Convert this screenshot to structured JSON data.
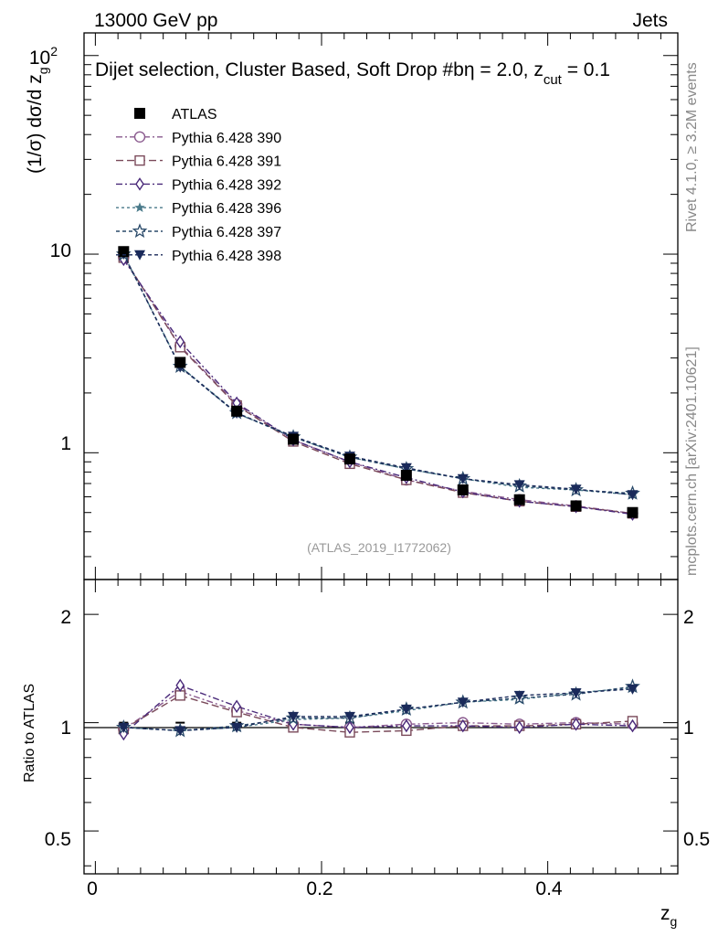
{
  "header": {
    "energy_label": "13000 GeV pp",
    "category_label": "Jets",
    "selection_title": "Dijet selection, Cluster Based, Soft Drop #bη = 2.0, z",
    "selection_sub": "cut",
    "selection_tail": " = 0.1",
    "watermark": "(ATLAS_2019_I1772062)",
    "rivet_side": "Rivet 4.1.0, ≥ 3.2M events",
    "mcplots_side": "mcplots.cern.ch [arXiv:2401.10621]"
  },
  "axes": {
    "main_ylabel_prefix": "(1/σ) dσ/d z",
    "main_ylabel_sub": "g",
    "ratio_ylabel": "Ratio to ATLAS",
    "xlabel": "z",
    "xlabel_sub": "g",
    "x_ticks": [
      "0",
      "0.2",
      "0.4"
    ],
    "main_y_ticks": [
      "1",
      "10",
      "10"
    ],
    "main_y_tick_sup": "2",
    "ratio_y_ticks": [
      "0.5",
      "1",
      "2"
    ],
    "ratio_y_ticks_right": [
      "0.5",
      "1",
      "2"
    ]
  },
  "colors": {
    "ATLAS": "#000000",
    "p390": "#8a5a8e",
    "p391": "#7a4a5a",
    "p392": "#4a2a7a",
    "p396": "#4a7a8a",
    "p397": "#2a4a6a",
    "p398": "#1a2a5a"
  },
  "chart_data": {
    "type": "scatter",
    "title": "Dijet selection, Cluster Based, Soft Drop #bη = 2.0, z_cut = 0.1",
    "xlabel": "z_g",
    "ylabel": "(1/σ) dσ/d z_g",
    "ratio_ylabel": "Ratio to ATLAS",
    "xlim": [
      -0.01,
      0.515
    ],
    "ylim": [
      0.23,
      130
    ],
    "ratio_ylim": [
      0.38,
      2.5
    ],
    "y_scale": "log",
    "legend_position": "top-left",
    "x": [
      0.025,
      0.075,
      0.125,
      0.175,
      0.225,
      0.275,
      0.325,
      0.375,
      0.425,
      0.475
    ],
    "series": [
      {
        "name": "ATLAS",
        "key": "ATLAS",
        "marker": "square-filled",
        "dash": "",
        "values": [
          10.3,
          2.85,
          1.62,
          1.17,
          0.93,
          0.77,
          0.65,
          0.58,
          0.54,
          0.5
        ]
      },
      {
        "name": "Pythia 6.428 390",
        "key": "p390",
        "marker": "circle",
        "dash": "7 3 2 3",
        "values": [
          9.6,
          3.45,
          1.75,
          1.16,
          0.9,
          0.73,
          0.64,
          0.58,
          0.54,
          0.495
        ]
      },
      {
        "name": "Pythia 6.428 391",
        "key": "p391",
        "marker": "square",
        "dash": "8 4",
        "values": [
          9.6,
          3.4,
          1.73,
          1.14,
          0.88,
          0.73,
          0.63,
          0.57,
          0.535,
          0.495
        ]
      },
      {
        "name": "Pythia 6.428 392",
        "key": "p392",
        "marker": "diamond",
        "dash": "7 3 2 3",
        "values": [
          9.4,
          3.62,
          1.78,
          1.16,
          0.9,
          0.75,
          0.635,
          0.57,
          0.535,
          0.49
        ]
      },
      {
        "name": "Pythia 6.428 396",
        "key": "p396",
        "marker": "star-filled",
        "dash": "3 3",
        "values": [
          10.0,
          2.72,
          1.58,
          1.2,
          0.95,
          0.83,
          0.74,
          0.67,
          0.65,
          0.615
        ]
      },
      {
        "name": "Pythia 6.428 397",
        "key": "p397",
        "marker": "star",
        "dash": "4 3",
        "values": [
          10.0,
          2.72,
          1.59,
          1.2,
          0.95,
          0.83,
          0.74,
          0.68,
          0.65,
          0.625
        ]
      },
      {
        "name": "Pythia 6.428 398",
        "key": "p398",
        "marker": "triangle-down",
        "dash": "4 3",
        "values": [
          10.0,
          2.7,
          1.58,
          1.21,
          0.96,
          0.84,
          0.74,
          0.69,
          0.655,
          0.615
        ]
      }
    ],
    "ratios": [
      {
        "key": "p390",
        "values": [
          0.96,
          1.22,
          1.08,
          0.99,
          0.97,
          0.99,
          1.0,
          0.99,
          1.0,
          0.99
        ]
      },
      {
        "key": "p391",
        "values": [
          0.96,
          1.19,
          1.07,
          0.97,
          0.94,
          0.95,
          0.98,
          0.98,
          0.99,
          1.01
        ]
      },
      {
        "key": "p392",
        "values": [
          0.93,
          1.27,
          1.11,
          0.99,
          0.97,
          0.98,
          0.98,
          0.97,
          0.99,
          0.98
        ]
      },
      {
        "key": "p396",
        "values": [
          0.97,
          0.95,
          0.97,
          1.02,
          1.03,
          1.08,
          1.14,
          1.16,
          1.21,
          1.25
        ]
      },
      {
        "key": "p397",
        "values": [
          0.97,
          0.95,
          0.98,
          1.03,
          1.03,
          1.09,
          1.14,
          1.17,
          1.2,
          1.26
        ]
      },
      {
        "key": "p398",
        "values": [
          0.97,
          0.95,
          0.97,
          1.04,
          1.04,
          1.09,
          1.14,
          1.19,
          1.21,
          1.24
        ]
      }
    ]
  }
}
